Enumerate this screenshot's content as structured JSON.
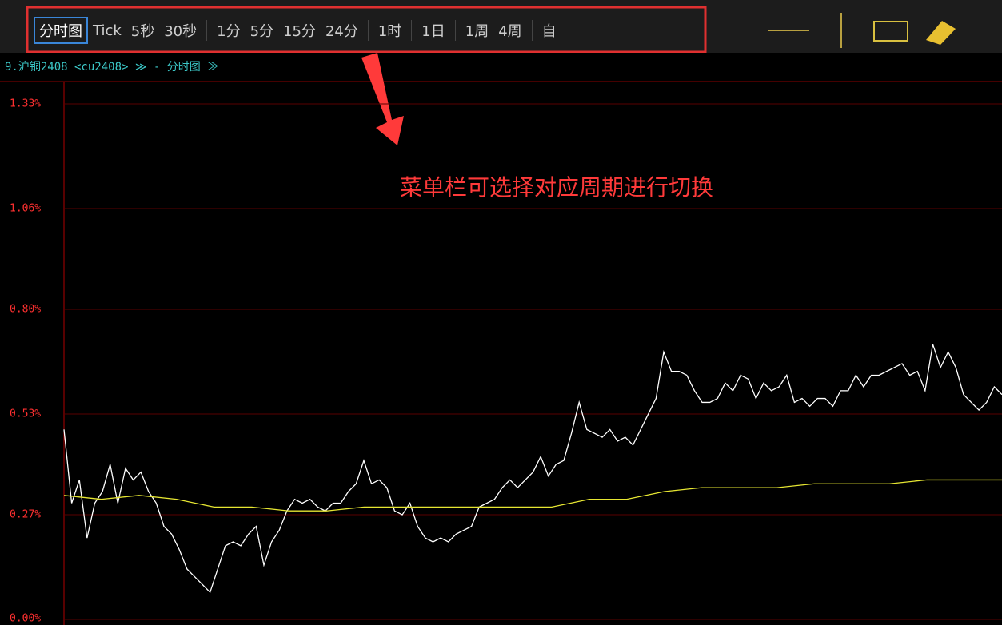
{
  "toolbar": {
    "groups": [
      [
        "分时图",
        "Tick",
        "5秒",
        "30秒"
      ],
      [
        "1分",
        "5分",
        "15分",
        "24分"
      ],
      [
        "1时"
      ],
      [
        "1日"
      ],
      [
        "1周",
        "4周"
      ],
      [
        "自"
      ]
    ]
  },
  "info_line": "9.沪铜2408 <cu2408> ≫ - 分时图 ≫",
  "annotation": "菜单栏可选择对应周期进行切换",
  "chart_data": {
    "type": "line",
    "ylim": [
      0,
      1.33
    ],
    "yticks": [
      {
        "value": 0,
        "label": "0.00%"
      },
      {
        "value": 0.27,
        "label": "0.27%"
      },
      {
        "value": 0.53,
        "label": "0.53%"
      },
      {
        "value": 0.8,
        "label": "0.80%"
      },
      {
        "value": 1.06,
        "label": "1.06%"
      },
      {
        "value": 1.33,
        "label": "1.33%"
      }
    ],
    "grid": true,
    "series": [
      {
        "color": "#ffffff",
        "values": [
          0.49,
          0.3,
          0.36,
          0.21,
          0.3,
          0.33,
          0.4,
          0.3,
          0.39,
          0.36,
          0.38,
          0.33,
          0.3,
          0.24,
          0.22,
          0.18,
          0.13,
          0.11,
          0.09,
          0.07,
          0.13,
          0.19,
          0.2,
          0.19,
          0.22,
          0.24,
          0.14,
          0.2,
          0.23,
          0.28,
          0.31,
          0.3,
          0.31,
          0.29,
          0.28,
          0.3,
          0.3,
          0.33,
          0.35,
          0.41,
          0.35,
          0.36,
          0.34,
          0.28,
          0.27,
          0.3,
          0.24,
          0.21,
          0.2,
          0.21,
          0.2,
          0.22,
          0.23,
          0.24,
          0.29,
          0.3,
          0.31,
          0.34,
          0.36,
          0.34,
          0.36,
          0.38,
          0.42,
          0.37,
          0.4,
          0.41,
          0.48,
          0.56,
          0.49,
          0.48,
          0.47,
          0.49,
          0.46,
          0.47,
          0.45,
          0.49,
          0.53,
          0.57,
          0.69,
          0.64,
          0.64,
          0.63,
          0.59,
          0.56,
          0.56,
          0.57,
          0.61,
          0.59,
          0.63,
          0.62,
          0.57,
          0.61,
          0.59,
          0.6,
          0.63,
          0.56,
          0.57,
          0.55,
          0.57,
          0.57,
          0.55,
          0.59,
          0.59,
          0.63,
          0.6,
          0.63,
          0.63,
          0.64,
          0.65,
          0.66,
          0.63,
          0.64,
          0.59,
          0.71,
          0.65,
          0.69,
          0.65,
          0.58,
          0.56,
          0.54,
          0.56,
          0.6,
          0.58
        ]
      },
      {
        "color": "#e6e632",
        "values": [
          0.32,
          0.31,
          0.32,
          0.31,
          0.29,
          0.29,
          0.28,
          0.28,
          0.29,
          0.29,
          0.29,
          0.29,
          0.29,
          0.29,
          0.31,
          0.31,
          0.33,
          0.34,
          0.34,
          0.34,
          0.35,
          0.35,
          0.35,
          0.36,
          0.36,
          0.36
        ]
      }
    ]
  }
}
